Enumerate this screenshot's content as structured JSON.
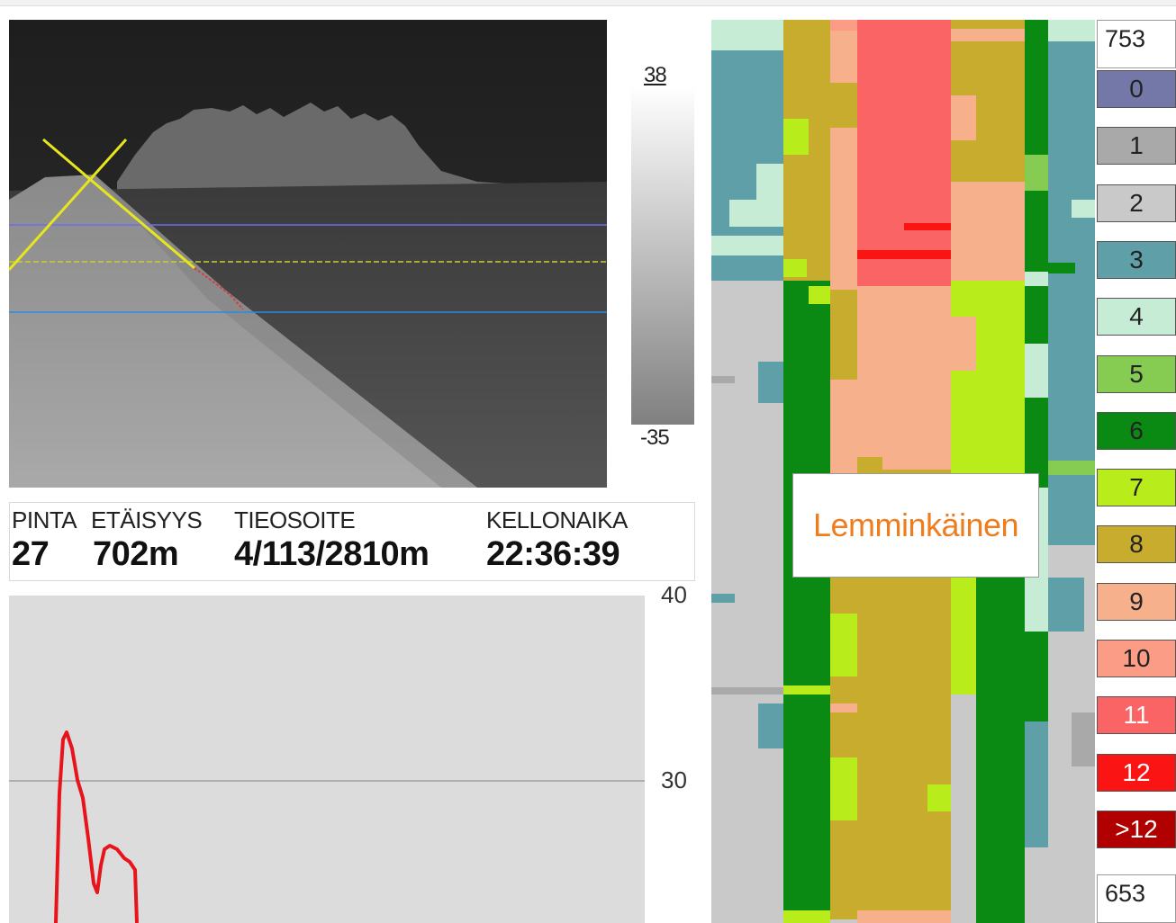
{
  "scale": {
    "max": "38",
    "min": "-35"
  },
  "info": {
    "pinta_label": "PINTA",
    "pinta_value": "27",
    "distance_label": "ETÄISYYS",
    "distance_value": "702m",
    "address_label": "TIEOSOITE",
    "address_value": "4/113/2810m",
    "time_label": "KELLONAIKA",
    "time_value": "22:36:39"
  },
  "graph": {
    "tick_top": "40",
    "tick_mid": "30",
    "line_color": "#e8141b"
  },
  "brand": {
    "name": "Lemminkäinen",
    "color": "#ef7d1e"
  },
  "range": {
    "top": "753",
    "bottom": "653"
  },
  "legend": [
    {
      "label": "0",
      "color": "#7478a8",
      "text_color": "#222222"
    },
    {
      "label": "1",
      "color": "#a9a9a9",
      "text_color": "#222222"
    },
    {
      "label": "2",
      "color": "#c9c9c9",
      "text_color": "#222222"
    },
    {
      "label": "3",
      "color": "#5fa0a8",
      "text_color": "#222222"
    },
    {
      "label": "4",
      "color": "#c6ecd6",
      "text_color": "#222222"
    },
    {
      "label": "5",
      "color": "#86cc52",
      "text_color": "#222222"
    },
    {
      "label": "6",
      "color": "#0a8a12",
      "text_color": "#222222"
    },
    {
      "label": "7",
      "color": "#b8ec1a",
      "text_color": "#222222"
    },
    {
      "label": "8",
      "color": "#c8ac2e",
      "text_color": "#222222"
    },
    {
      "label": "9",
      "color": "#f7b08c",
      "text_color": "#222222"
    },
    {
      "label": "10",
      "color": "#fb9c86",
      "text_color": "#222222"
    },
    {
      "label": "11",
      "color": "#fa6464",
      "text_color": "#ffffff"
    },
    {
      "label": "12",
      "color": "#fa1414",
      "text_color": "#ffffff"
    },
    {
      "label": ">12",
      "color": "#b00000",
      "text_color": "#ffffff"
    }
  ]
}
